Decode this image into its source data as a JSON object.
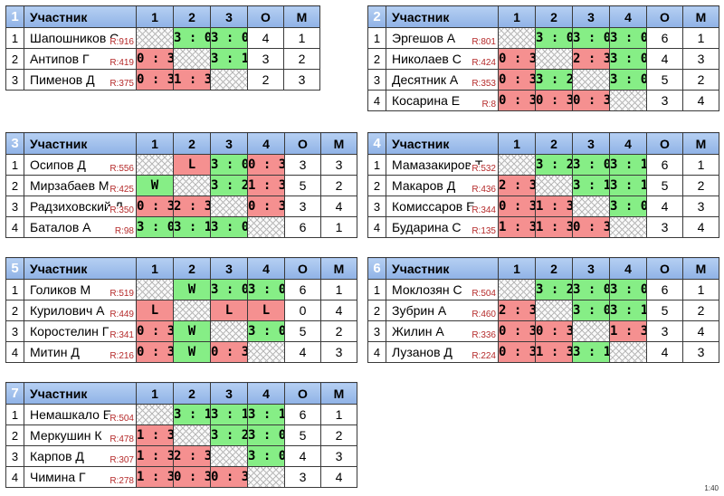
{
  "headers": {
    "participant": "Участник",
    "points": "О",
    "place": "М"
  },
  "footer": "1:40",
  "groups": [
    {
      "id": "1",
      "cols": [
        "1",
        "2",
        "3"
      ],
      "players": [
        {
          "n": "1",
          "name": "Шапошников С",
          "rating": "R:916",
          "cells": [
            null,
            {
              "t": "3 : 0",
              "r": "w"
            },
            {
              "t": "3 : 0",
              "r": "w"
            }
          ],
          "points": "4",
          "place": "1"
        },
        {
          "n": "2",
          "name": "Антипов Г",
          "rating": "R:419",
          "cells": [
            {
              "t": "0 : 3",
              "r": "l"
            },
            null,
            {
              "t": "3 : 1",
              "r": "w"
            }
          ],
          "points": "3",
          "place": "2"
        },
        {
          "n": "3",
          "name": "Пименов Д",
          "rating": "R:375",
          "cells": [
            {
              "t": "0 : 3",
              "r": "l"
            },
            {
              "t": "1 : 3",
              "r": "l"
            },
            null
          ],
          "points": "2",
          "place": "3"
        }
      ]
    },
    {
      "id": "2",
      "cols": [
        "1",
        "2",
        "3",
        "4"
      ],
      "players": [
        {
          "n": "1",
          "name": "Эргешов А",
          "rating": "R:801",
          "cells": [
            null,
            {
              "t": "3 : 0",
              "r": "w"
            },
            {
              "t": "3 : 0",
              "r": "w"
            },
            {
              "t": "3 : 0",
              "r": "w"
            }
          ],
          "points": "6",
          "place": "1"
        },
        {
          "n": "2",
          "name": "Николаев С",
          "rating": "R:424",
          "cells": [
            {
              "t": "0 : 3",
              "r": "l"
            },
            null,
            {
              "t": "2 : 3",
              "r": "l"
            },
            {
              "t": "3 : 0",
              "r": "w"
            }
          ],
          "points": "4",
          "place": "3"
        },
        {
          "n": "3",
          "name": "Десятник А",
          "rating": "R:353",
          "cells": [
            {
              "t": "0 : 3",
              "r": "l"
            },
            {
              "t": "3 : 2",
              "r": "w"
            },
            null,
            {
              "t": "3 : 0",
              "r": "w"
            }
          ],
          "points": "5",
          "place": "2"
        },
        {
          "n": "4",
          "name": "Косарина Е",
          "rating": "R:8",
          "cells": [
            {
              "t": "0 : 3",
              "r": "l"
            },
            {
              "t": "0 : 3",
              "r": "l"
            },
            {
              "t": "0 : 3",
              "r": "l"
            },
            null
          ],
          "points": "3",
          "place": "4"
        }
      ]
    },
    {
      "id": "3",
      "cols": [
        "1",
        "2",
        "3",
        "4"
      ],
      "players": [
        {
          "n": "1",
          "name": "Осипов Д",
          "rating": "R:556",
          "cells": [
            null,
            {
              "t": "L",
              "r": "l"
            },
            {
              "t": "3 : 0",
              "r": "w"
            },
            {
              "t": "0 : 3",
              "r": "l"
            }
          ],
          "points": "3",
          "place": "3"
        },
        {
          "n": "2",
          "name": "Мирзабаев М",
          "rating": "R:425",
          "cells": [
            {
              "t": "W",
              "r": "w"
            },
            null,
            {
              "t": "3 : 2",
              "r": "w"
            },
            {
              "t": "1 : 3",
              "r": "l"
            }
          ],
          "points": "5",
          "place": "2"
        },
        {
          "n": "3",
          "name": "Радзиховский Д",
          "rating": "R:350",
          "cells": [
            {
              "t": "0 : 3",
              "r": "l"
            },
            {
              "t": "2 : 3",
              "r": "l"
            },
            null,
            {
              "t": "0 : 3",
              "r": "l"
            }
          ],
          "points": "3",
          "place": "4"
        },
        {
          "n": "4",
          "name": "Баталов А",
          "rating": "R:98",
          "cells": [
            {
              "t": "3 : 0",
              "r": "w"
            },
            {
              "t": "3 : 1",
              "r": "w"
            },
            {
              "t": "3 : 0",
              "r": "w"
            },
            null
          ],
          "points": "6",
          "place": "1"
        }
      ]
    },
    {
      "id": "4",
      "cols": [
        "1",
        "2",
        "3",
        "4"
      ],
      "players": [
        {
          "n": "1",
          "name": "Мамазакиров Т",
          "rating": "R:532",
          "cells": [
            null,
            {
              "t": "3 : 2",
              "r": "w"
            },
            {
              "t": "3 : 0",
              "r": "w"
            },
            {
              "t": "3 : 1",
              "r": "w"
            }
          ],
          "points": "6",
          "place": "1"
        },
        {
          "n": "2",
          "name": "Макаров Д",
          "rating": "R:436",
          "cells": [
            {
              "t": "2 : 3",
              "r": "l"
            },
            null,
            {
              "t": "3 : 1",
              "r": "w"
            },
            {
              "t": "3 : 1",
              "r": "w"
            }
          ],
          "points": "5",
          "place": "2"
        },
        {
          "n": "3",
          "name": "Комиссаров Е",
          "rating": "R:344",
          "cells": [
            {
              "t": "0 : 3",
              "r": "l"
            },
            {
              "t": "1 : 3",
              "r": "l"
            },
            null,
            {
              "t": "3 : 0",
              "r": "w"
            }
          ],
          "points": "4",
          "place": "3"
        },
        {
          "n": "4",
          "name": "Бударина С",
          "rating": "R:135",
          "cells": [
            {
              "t": "1 : 3",
              "r": "l"
            },
            {
              "t": "1 : 3",
              "r": "l"
            },
            {
              "t": "0 : 3",
              "r": "l"
            },
            null
          ],
          "points": "3",
          "place": "4"
        }
      ]
    },
    {
      "id": "5",
      "cols": [
        "1",
        "2",
        "3",
        "4"
      ],
      "players": [
        {
          "n": "1",
          "name": "Голиков М",
          "rating": "R:519",
          "cells": [
            null,
            {
              "t": "W",
              "r": "w"
            },
            {
              "t": "3 : 0",
              "r": "w"
            },
            {
              "t": "3 : 0",
              "r": "w"
            }
          ],
          "points": "6",
          "place": "1"
        },
        {
          "n": "2",
          "name": "Курилович А",
          "rating": "R:449",
          "cells": [
            {
              "t": "L",
              "r": "l"
            },
            null,
            {
              "t": "L",
              "r": "l"
            },
            {
              "t": "L",
              "r": "l"
            }
          ],
          "points": "0",
          "place": "4"
        },
        {
          "n": "3",
          "name": "Коростелин Г",
          "rating": "R:341",
          "cells": [
            {
              "t": "0 : 3",
              "r": "l"
            },
            {
              "t": "W",
              "r": "w"
            },
            null,
            {
              "t": "3 : 0",
              "r": "w"
            }
          ],
          "points": "5",
          "place": "2"
        },
        {
          "n": "4",
          "name": "Митин Д",
          "rating": "R:216",
          "cells": [
            {
              "t": "0 : 3",
              "r": "l"
            },
            {
              "t": "W",
              "r": "w"
            },
            {
              "t": "0 : 3",
              "r": "l"
            },
            null
          ],
          "points": "4",
          "place": "3"
        }
      ]
    },
    {
      "id": "6",
      "cols": [
        "1",
        "2",
        "3",
        "4"
      ],
      "players": [
        {
          "n": "1",
          "name": "Моклозян С",
          "rating": "R:504",
          "cells": [
            null,
            {
              "t": "3 : 2",
              "r": "w"
            },
            {
              "t": "3 : 0",
              "r": "w"
            },
            {
              "t": "3 : 0",
              "r": "w"
            }
          ],
          "points": "6",
          "place": "1"
        },
        {
          "n": "2",
          "name": "Зубрин А",
          "rating": "R:460",
          "cells": [
            {
              "t": "2 : 3",
              "r": "l"
            },
            null,
            {
              "t": "3 : 0",
              "r": "w"
            },
            {
              "t": "3 : 1",
              "r": "w"
            }
          ],
          "points": "5",
          "place": "2"
        },
        {
          "n": "3",
          "name": "Жилин А",
          "rating": "R:336",
          "cells": [
            {
              "t": "0 : 3",
              "r": "l"
            },
            {
              "t": "0 : 3",
              "r": "l"
            },
            null,
            {
              "t": "1 : 3",
              "r": "l"
            }
          ],
          "points": "3",
          "place": "4"
        },
        {
          "n": "4",
          "name": "Лузанов Д",
          "rating": "R:224",
          "cells": [
            {
              "t": "0 : 3",
              "r": "l"
            },
            {
              "t": "1 : 3",
              "r": "l"
            },
            {
              "t": "3 : 1",
              "r": "w"
            },
            null
          ],
          "points": "4",
          "place": "3"
        }
      ]
    },
    {
      "id": "7",
      "cols": [
        "1",
        "2",
        "3",
        "4"
      ],
      "players": [
        {
          "n": "1",
          "name": "Немашкало Е",
          "rating": "R:504",
          "cells": [
            null,
            {
              "t": "3 : 1",
              "r": "w"
            },
            {
              "t": "3 : 1",
              "r": "w"
            },
            {
              "t": "3 : 1",
              "r": "w"
            }
          ],
          "points": "6",
          "place": "1"
        },
        {
          "n": "2",
          "name": "Меркушин К",
          "rating": "R:478",
          "cells": [
            {
              "t": "1 : 3",
              "r": "l"
            },
            null,
            {
              "t": "3 : 2",
              "r": "w"
            },
            {
              "t": "3 : 0",
              "r": "w"
            }
          ],
          "points": "5",
          "place": "2"
        },
        {
          "n": "3",
          "name": "Карпов Д",
          "rating": "R:307",
          "cells": [
            {
              "t": "1 : 3",
              "r": "l"
            },
            {
              "t": "2 : 3",
              "r": "l"
            },
            null,
            {
              "t": "3 : 0",
              "r": "w"
            }
          ],
          "points": "4",
          "place": "3"
        },
        {
          "n": "4",
          "name": "Чимина Г",
          "rating": "R:278",
          "cells": [
            {
              "t": "1 : 3",
              "r": "l"
            },
            {
              "t": "0 : 3",
              "r": "l"
            },
            {
              "t": "0 : 3",
              "r": "l"
            },
            null
          ],
          "points": "3",
          "place": "4"
        }
      ]
    }
  ]
}
